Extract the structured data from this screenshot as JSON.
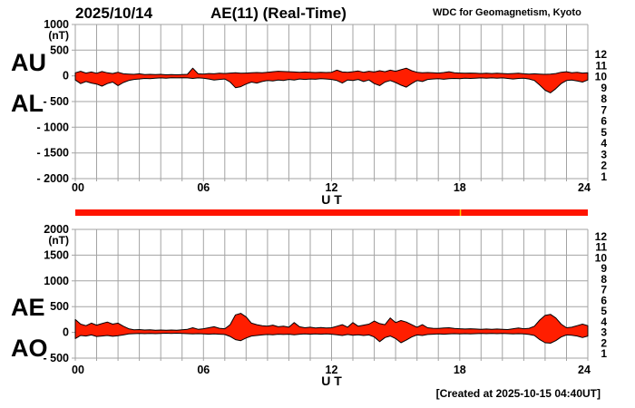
{
  "header": {
    "date": "2025/10/14",
    "title": "AE(11) (Real-Time)",
    "source": "WDC for Geomagnetism, Kyoto"
  },
  "footer": {
    "created": "[Created at 2025-10-15 04:40UT]"
  },
  "colors": {
    "trace_fill": "#FF1E00",
    "trace_outline": "#000000",
    "grid": "#A3A3A3",
    "bar": "#FF1400",
    "bar_marker": "#FFC800",
    "text": "#000000"
  },
  "availability_bar": {
    "marker_hour": 18
  },
  "station_numbers": [
    {
      "label": "12",
      "color": "#E8186D"
    },
    {
      "label": "11",
      "color": "#FF2800"
    },
    {
      "label": "10",
      "color": "#FF8C00"
    },
    {
      "label": "9",
      "color": "#FFE100"
    },
    {
      "label": "8",
      "color": "#8CFA32"
    },
    {
      "label": "7",
      "color": "#00D7D7"
    },
    {
      "label": "6",
      "color": "#2878FF"
    },
    {
      "label": "5",
      "color": "#4632D2"
    },
    {
      "label": "4",
      "color": "#FA28FA"
    },
    {
      "label": "3",
      "color": "#141414"
    },
    {
      "label": "2",
      "color": "#8C8C8C"
    },
    {
      "label": "1",
      "color": "#C8C8C8"
    }
  ],
  "chart_data": [
    {
      "type": "area",
      "title": "AU and AL indices",
      "xlabel": "U T",
      "ylabel": "(nT)",
      "xlim": [
        0,
        24
      ],
      "ylim": [
        -2000,
        1000
      ],
      "xticks": [
        0,
        6,
        12,
        18,
        24
      ],
      "xtick_labels": [
        "00",
        "06",
        "12",
        "18",
        "24"
      ],
      "yticks": [
        1000,
        500,
        0,
        -500,
        -1000,
        -1500,
        -2000
      ],
      "ytick_labels": [
        "1000",
        "500",
        "0",
        "- 500",
        "- 1000",
        "- 1500",
        "- 2000"
      ],
      "grid": true,
      "x_start": 0,
      "x_step": 0.25,
      "series": [
        {
          "name": "AU",
          "values": [
            60,
            90,
            55,
            75,
            50,
            85,
            60,
            45,
            70,
            40,
            35,
            30,
            40,
            25,
            30,
            25,
            30,
            20,
            25,
            20,
            25,
            30,
            150,
            40,
            35,
            45,
            40,
            50,
            45,
            55,
            60,
            50,
            55,
            60,
            65,
            60,
            70,
            80,
            90,
            85,
            80,
            75,
            70,
            75,
            70,
            65,
            70,
            65,
            70,
            110,
            75,
            70,
            80,
            95,
            70,
            90,
            75,
            100,
            80,
            110,
            90,
            120,
            150,
            100,
            70,
            60,
            65,
            60,
            55,
            65,
            80,
            60,
            55,
            50,
            55,
            50,
            45,
            50,
            45,
            50,
            45,
            40,
            45,
            50,
            40,
            35,
            40,
            35,
            30,
            35,
            45,
            70,
            80,
            60,
            70,
            55,
            60
          ]
        },
        {
          "name": "AL",
          "values": [
            -80,
            -150,
            -110,
            -140,
            -160,
            -200,
            -150,
            -120,
            -190,
            -130,
            -90,
            -70,
            -60,
            -50,
            -55,
            -45,
            -40,
            -45,
            -35,
            -40,
            -35,
            -40,
            -50,
            -40,
            -45,
            -60,
            -80,
            -70,
            -60,
            -120,
            -230,
            -210,
            -160,
            -120,
            -140,
            -110,
            -90,
            -100,
            -80,
            -90,
            -70,
            -80,
            -60,
            -70,
            -60,
            -65,
            -55,
            -60,
            -70,
            -90,
            -140,
            -80,
            -90,
            -70,
            -110,
            -80,
            -150,
            -190,
            -120,
            -90,
            -130,
            -180,
            -220,
            -150,
            -90,
            -110,
            -70,
            -60,
            -55,
            -65,
            -55,
            -50,
            -55,
            -45,
            -50,
            -45,
            -40,
            -45,
            -40,
            -45,
            -40,
            -50,
            -60,
            -50,
            -45,
            -60,
            -90,
            -180,
            -280,
            -330,
            -250,
            -150,
            -90,
            -80,
            -100,
            -120,
            -80
          ]
        }
      ]
    },
    {
      "type": "area",
      "title": "AE and AO indices",
      "xlabel": "U T",
      "ylabel": "(nT)",
      "xlim": [
        0,
        24
      ],
      "ylim": [
        -500,
        2000
      ],
      "xticks": [
        0,
        6,
        12,
        18,
        24
      ],
      "xtick_labels": [
        "00",
        "06",
        "12",
        "18",
        "24"
      ],
      "yticks": [
        2000,
        1500,
        1000,
        500,
        0,
        -500
      ],
      "ytick_labels": [
        "2000",
        "1500",
        "1000",
        "500",
        "0",
        "- 500"
      ],
      "grid": true,
      "x_start": 0,
      "x_step": 0.25,
      "series": [
        {
          "name": "AE",
          "values": [
            250,
            160,
            130,
            180,
            140,
            170,
            200,
            160,
            180,
            120,
            70,
            50,
            55,
            45,
            50,
            40,
            45,
            40,
            45,
            40,
            50,
            60,
            90,
            60,
            70,
            90,
            110,
            80,
            70,
            150,
            340,
            370,
            300,
            180,
            150,
            130,
            120,
            140,
            110,
            120,
            100,
            190,
            110,
            90,
            100,
            85,
            95,
            85,
            90,
            120,
            150,
            100,
            190,
            120,
            140,
            160,
            220,
            170,
            150,
            280,
            190,
            230,
            200,
            150,
            100,
            150,
            90,
            80,
            75,
            85,
            90,
            75,
            70,
            65,
            70,
            65,
            60,
            65,
            60,
            65,
            60,
            55,
            70,
            85,
            70,
            80,
            120,
            240,
            330,
            350,
            280,
            160,
            90,
            100,
            130,
            160,
            130
          ]
        },
        {
          "name": "AO",
          "values": [
            -120,
            -60,
            -70,
            -50,
            -80,
            -70,
            -60,
            -75,
            -65,
            -50,
            -30,
            -25,
            -20,
            -25,
            -20,
            -25,
            -20,
            -15,
            -20,
            -15,
            -20,
            -25,
            -30,
            -25,
            -30,
            -35,
            -30,
            -35,
            -40,
            -80,
            -140,
            -160,
            -110,
            -70,
            -60,
            -50,
            -40,
            -45,
            -35,
            -40,
            -35,
            -45,
            -35,
            -30,
            -35,
            -30,
            -35,
            -30,
            -35,
            -45,
            -60,
            -40,
            -55,
            -45,
            -60,
            -50,
            -90,
            -180,
            -100,
            -70,
            -120,
            -200,
            -150,
            -90,
            -50,
            -60,
            -40,
            -35,
            -30,
            -35,
            -30,
            -25,
            -30,
            -25,
            -30,
            -25,
            -20,
            -25,
            -20,
            -25,
            -20,
            -25,
            -30,
            -25,
            -30,
            -40,
            -60,
            -140,
            -200,
            -210,
            -160,
            -90,
            -50,
            -55,
            -70,
            -100,
            -70
          ]
        }
      ]
    }
  ]
}
